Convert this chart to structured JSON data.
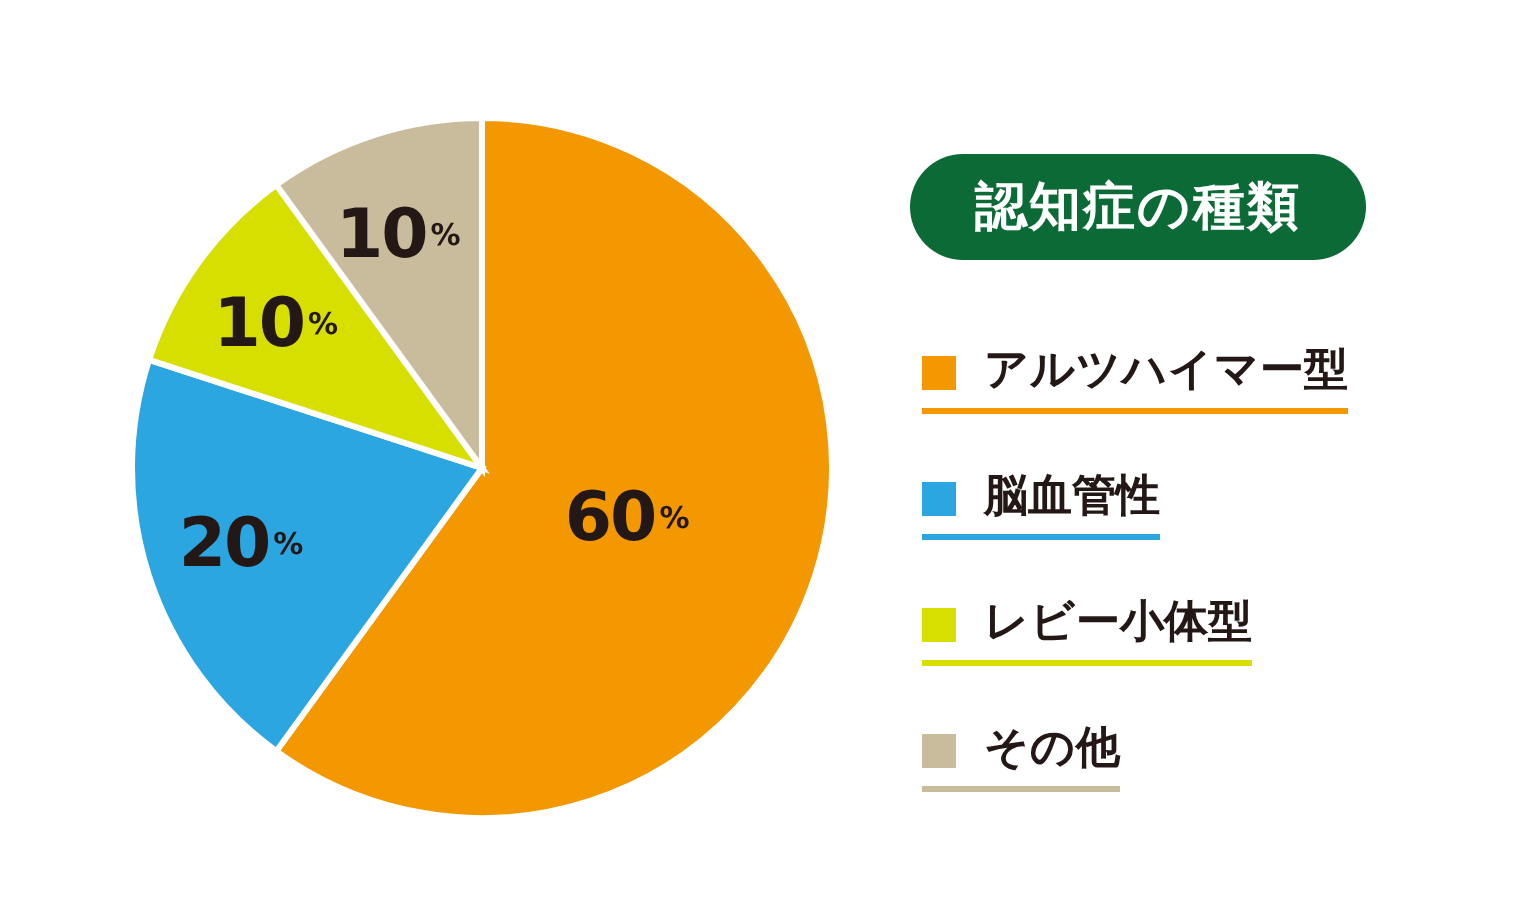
{
  "chart_data": {
    "type": "pie",
    "legend_title": "認知症の種類",
    "categories": [
      "アルツハイマー型",
      "脳血管性",
      "レビー小体型",
      "その他"
    ],
    "values": [
      60,
      20,
      10,
      10
    ],
    "colors": [
      "#f39800",
      "#2ca6e0",
      "#d7df01",
      "#c9bc9c"
    ],
    "value_labels": [
      "60%",
      "20%",
      "10%",
      "10%"
    ],
    "legend": "right"
  }
}
